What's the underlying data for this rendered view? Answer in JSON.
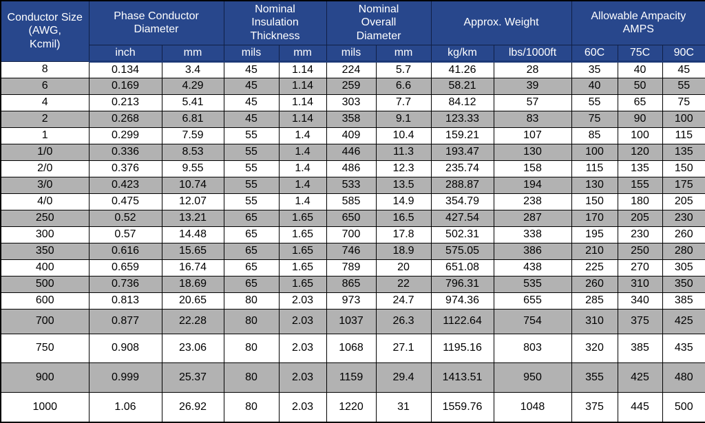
{
  "colors": {
    "header_bg": "#28478C",
    "header_text": "#FFFFFF",
    "header_border": "#101F45",
    "row_bg": "#FFFFFF",
    "row_alt_bg": "#B2B2B2",
    "grid_border": "#000000",
    "body_text": "#000000"
  },
  "chart_data": {
    "type": "table",
    "column_groups": [
      {
        "label": "Conductor Size (AWG,\nKcmil)",
        "span": 1
      },
      {
        "label": "Phase Conductor\nDiameter",
        "span": 2
      },
      {
        "label": "Nominal\nInsulation\nThickness",
        "span": 2
      },
      {
        "label": "Nominal\nOverall\nDiameter",
        "span": 2
      },
      {
        "label": "Approx. Weight",
        "span": 2
      },
      {
        "label": "Allowable Ampacity\nAMPS",
        "span": 3
      }
    ],
    "units": [
      "inch",
      "mm",
      "mils",
      "mm",
      "mils",
      "mm",
      "kg/km",
      "lbs/1000ft",
      "60C",
      "75C",
      "90C"
    ],
    "columns_flat": [
      "Conductor Size (AWG, Kcmil)",
      "Phase Conductor Diameter (inch)",
      "Phase Conductor Diameter (mm)",
      "Nominal Insulation Thickness (mils)",
      "Nominal Insulation Thickness (mm)",
      "Nominal Overall Diameter (mils)",
      "Nominal Overall Diameter (mm)",
      "Approx. Weight (kg/km)",
      "Approx. Weight (lbs/1000ft)",
      "Allowable Ampacity 60C",
      "Allowable Ampacity 75C",
      "Allowable Ampacity 90C"
    ],
    "rows": [
      [
        "8",
        "0.134",
        "3.4",
        "45",
        "1.14",
        "224",
        "5.7",
        "41.26",
        "28",
        "35",
        "40",
        "45"
      ],
      [
        "6",
        "0.169",
        "4.29",
        "45",
        "1.14",
        "259",
        "6.6",
        "58.21",
        "39",
        "40",
        "50",
        "55"
      ],
      [
        "4",
        "0.213",
        "5.41",
        "45",
        "1.14",
        "303",
        "7.7",
        "84.12",
        "57",
        "55",
        "65",
        "75"
      ],
      [
        "2",
        "0.268",
        "6.81",
        "45",
        "1.14",
        "358",
        "9.1",
        "123.33",
        "83",
        "75",
        "90",
        "100"
      ],
      [
        "1",
        "0.299",
        "7.59",
        "55",
        "1.4",
        "409",
        "10.4",
        "159.21",
        "107",
        "85",
        "100",
        "115"
      ],
      [
        "1/0",
        "0.336",
        "8.53",
        "55",
        "1.4",
        "446",
        "11.3",
        "193.47",
        "130",
        "100",
        "120",
        "135"
      ],
      [
        "2/0",
        "0.376",
        "9.55",
        "55",
        "1.4",
        "486",
        "12.3",
        "235.74",
        "158",
        "115",
        "135",
        "150"
      ],
      [
        "3/0",
        "0.423",
        "10.74",
        "55",
        "1.4",
        "533",
        "13.5",
        "288.87",
        "194",
        "130",
        "155",
        "175"
      ],
      [
        "4/0",
        "0.475",
        "12.07",
        "55",
        "1.4",
        "585",
        "14.9",
        "354.79",
        "238",
        "150",
        "180",
        "205"
      ],
      [
        "250",
        "0.52",
        "13.21",
        "65",
        "1.65",
        "650",
        "16.5",
        "427.54",
        "287",
        "170",
        "205",
        "230"
      ],
      [
        "300",
        "0.57",
        "14.48",
        "65",
        "1.65",
        "700",
        "17.8",
        "502.31",
        "338",
        "195",
        "230",
        "260"
      ],
      [
        "350",
        "0.616",
        "15.65",
        "65",
        "1.65",
        "746",
        "18.9",
        "575.05",
        "386",
        "210",
        "250",
        "280"
      ],
      [
        "400",
        "0.659",
        "16.74",
        "65",
        "1.65",
        "789",
        "20",
        "651.08",
        "438",
        "225",
        "270",
        "305"
      ],
      [
        "500",
        "0.736",
        "18.69",
        "65",
        "1.65",
        "865",
        "22",
        "796.31",
        "535",
        "260",
        "310",
        "350"
      ],
      [
        "600",
        "0.813",
        "20.65",
        "80",
        "2.03",
        "973",
        "24.7",
        "974.36",
        "655",
        "285",
        "340",
        "385"
      ],
      [
        "700",
        "0.877",
        "22.28",
        "80",
        "2.03",
        "1037",
        "26.3",
        "1122.64",
        "754",
        "310",
        "375",
        "425"
      ],
      [
        "750",
        "0.908",
        "23.06",
        "80",
        "2.03",
        "1068",
        "27.1",
        "1195.16",
        "803",
        "320",
        "385",
        "435"
      ],
      [
        "900",
        "0.999",
        "25.37",
        "80",
        "2.03",
        "1159",
        "29.4",
        "1413.51",
        "950",
        "355",
        "425",
        "480"
      ],
      [
        "1000",
        "1.06",
        "26.92",
        "80",
        "2.03",
        "1220",
        "31",
        "1559.76",
        "1048",
        "375",
        "445",
        "500"
      ]
    ]
  }
}
